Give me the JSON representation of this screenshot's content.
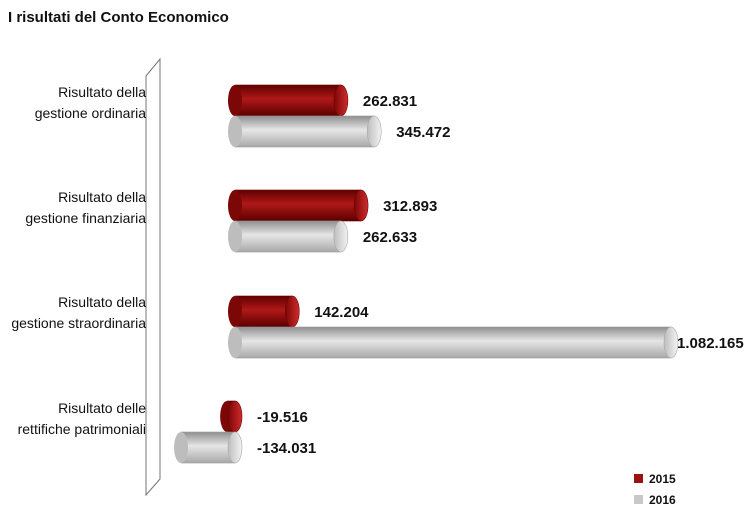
{
  "chart_data": {
    "type": "bar",
    "orientation": "horizontal",
    "style": "3D cylinder bars",
    "title": "I risultati del Conto Economico",
    "categories": [
      {
        "name": "Risultato della gestione ordinaria",
        "lines": [
          "Risultato della",
          "gestione ordinaria"
        ]
      },
      {
        "name": "Risultato della gestione finanziaria",
        "lines": [
          "Risultato della",
          "gestione finanziaria"
        ]
      },
      {
        "name": "Risultato della gestione straordinaria",
        "lines": [
          "Risultato della",
          "gestione straordinaria"
        ]
      },
      {
        "name": "Risultato delle rettifiche patrimoniali",
        "lines": [
          "Risultato delle",
          "rettifiche patrimoniali"
        ]
      }
    ],
    "series": [
      {
        "name": "2015",
        "color": "#9b1111",
        "values": [
          262831,
          312893,
          142204,
          -19516
        ],
        "labels": [
          "262.831",
          "312.893",
          "142.204",
          "-19.516"
        ]
      },
      {
        "name": "2016",
        "color": "#c8c8c8",
        "values": [
          345472,
          262633,
          1082165,
          -134031
        ],
        "labels": [
          "345.472",
          "262.633",
          "1.082.165",
          "-134.031"
        ]
      }
    ],
    "xlim": [
      -134031,
      1082165
    ],
    "grid": false,
    "legend": "bottom-right"
  }
}
